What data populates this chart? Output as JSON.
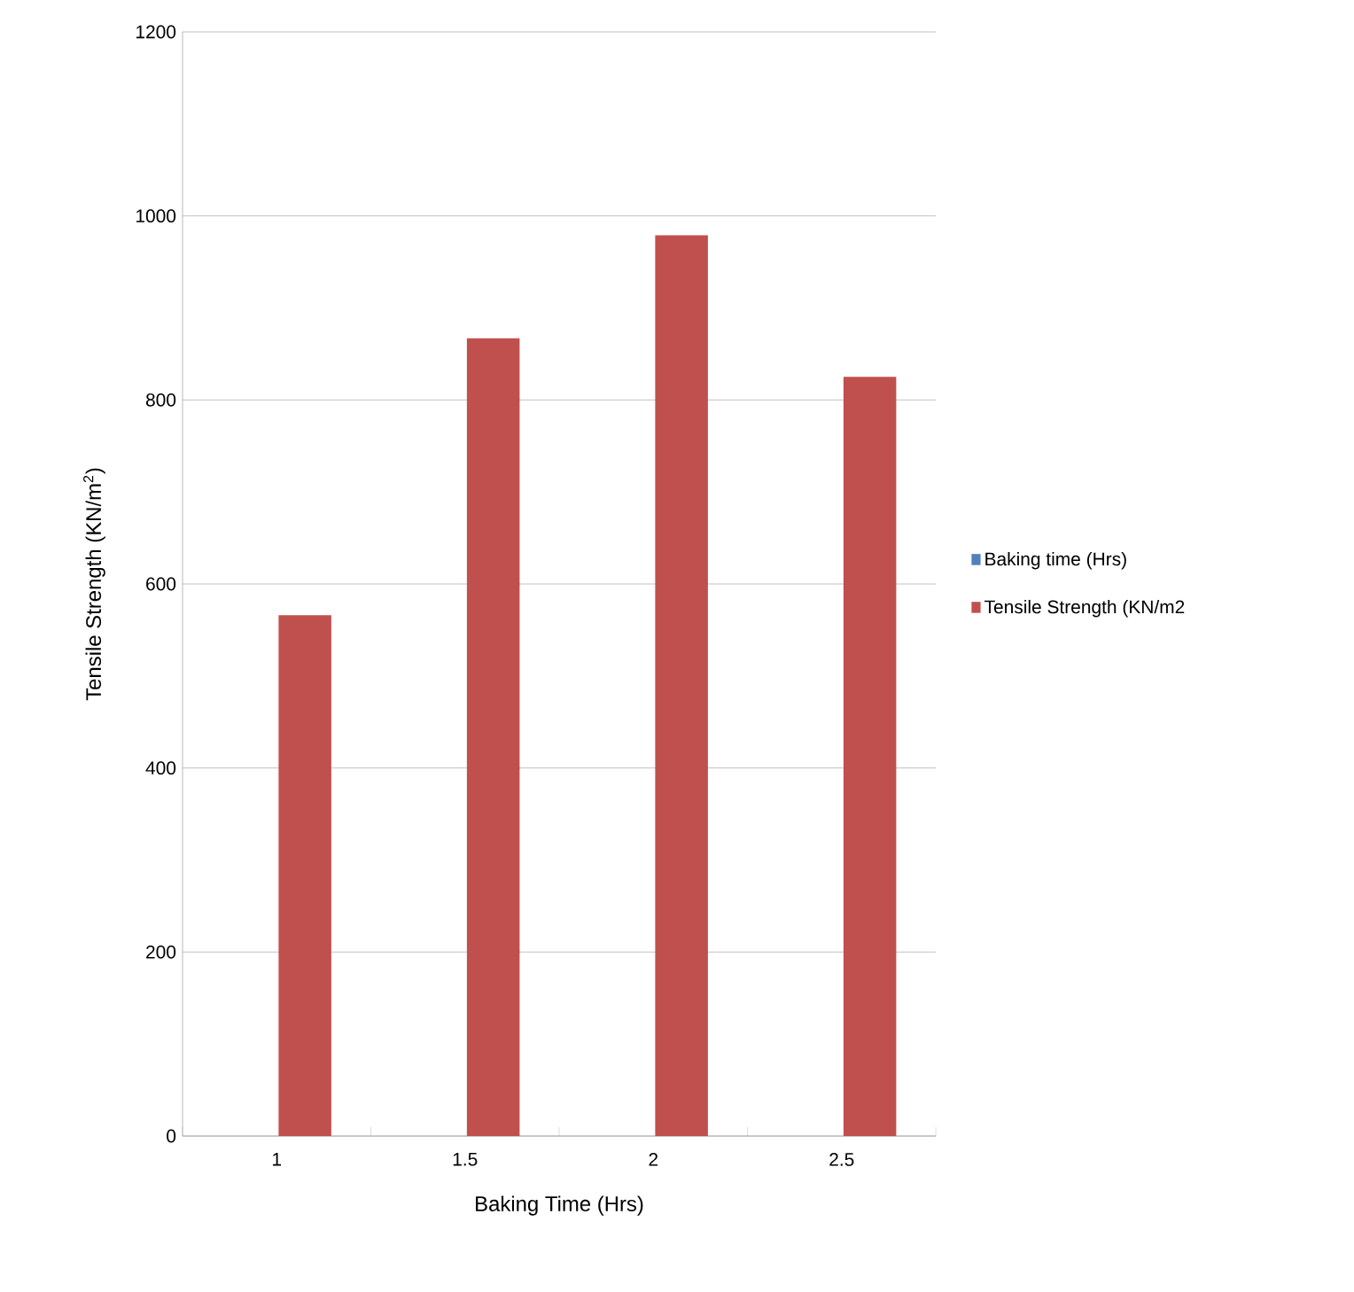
{
  "chart_data": {
    "type": "bar",
    "xlabel": "Baking Time (Hrs)",
    "ylabel": "Tensile Strength (KN/m$^{2}$)",
    "categories": [
      "1",
      "1.5",
      "2",
      "2.5"
    ],
    "series": [
      {
        "name": "Baking time (Hrs)",
        "color": "#4f81bd",
        "values": [
          null,
          null,
          null,
          null
        ]
      },
      {
        "name": "Tensile Strength (KN/m2",
        "color": "#c0504d",
        "values": [
          566,
          867,
          979,
          825
        ]
      }
    ],
    "ylim": [
      0,
      1200
    ],
    "yticks": [
      0,
      200,
      400,
      600,
      800,
      1000,
      1200
    ],
    "grid": "y",
    "legend": "right"
  }
}
